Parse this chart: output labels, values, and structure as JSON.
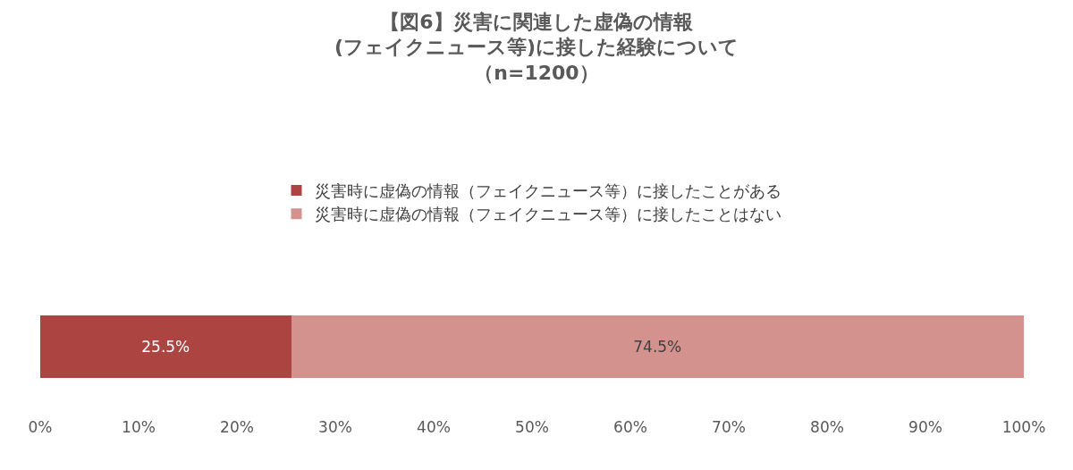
{
  "chart_data": {
    "type": "bar",
    "orientation": "horizontal",
    "stacked": true,
    "title": "【図6】災害に関連した虚偽の情報(フェイクニュース等)に接した経験について（n=1200）",
    "categories": [
      null
    ],
    "series": [
      {
        "name": "災害時に虚偽の情報（フェイクニュース等）に接したことがある",
        "color": "#ac4442",
        "values": [
          25.5
        ],
        "value_labels": [
          "25.5%"
        ]
      },
      {
        "name": "災害時に虚偽の情報（フェイクニュース等）に接したことはない",
        "color": "#d4928f",
        "values": [
          74.5
        ],
        "value_labels": [
          "74.5%"
        ]
      }
    ],
    "xlim": [
      0,
      100
    ],
    "xticks": [
      {
        "value": 0,
        "label": "0%"
      },
      {
        "value": 10,
        "label": "10%"
      },
      {
        "value": 20,
        "label": "20%"
      },
      {
        "value": 30,
        "label": "30%"
      },
      {
        "value": 40,
        "label": "40%"
      },
      {
        "value": 50,
        "label": "50%"
      },
      {
        "value": 60,
        "label": "60%"
      },
      {
        "value": 70,
        "label": "70%"
      },
      {
        "value": 80,
        "label": "80%"
      },
      {
        "value": 90,
        "label": "90%"
      },
      {
        "value": 100,
        "label": "100%"
      }
    ],
    "legend": "top"
  }
}
